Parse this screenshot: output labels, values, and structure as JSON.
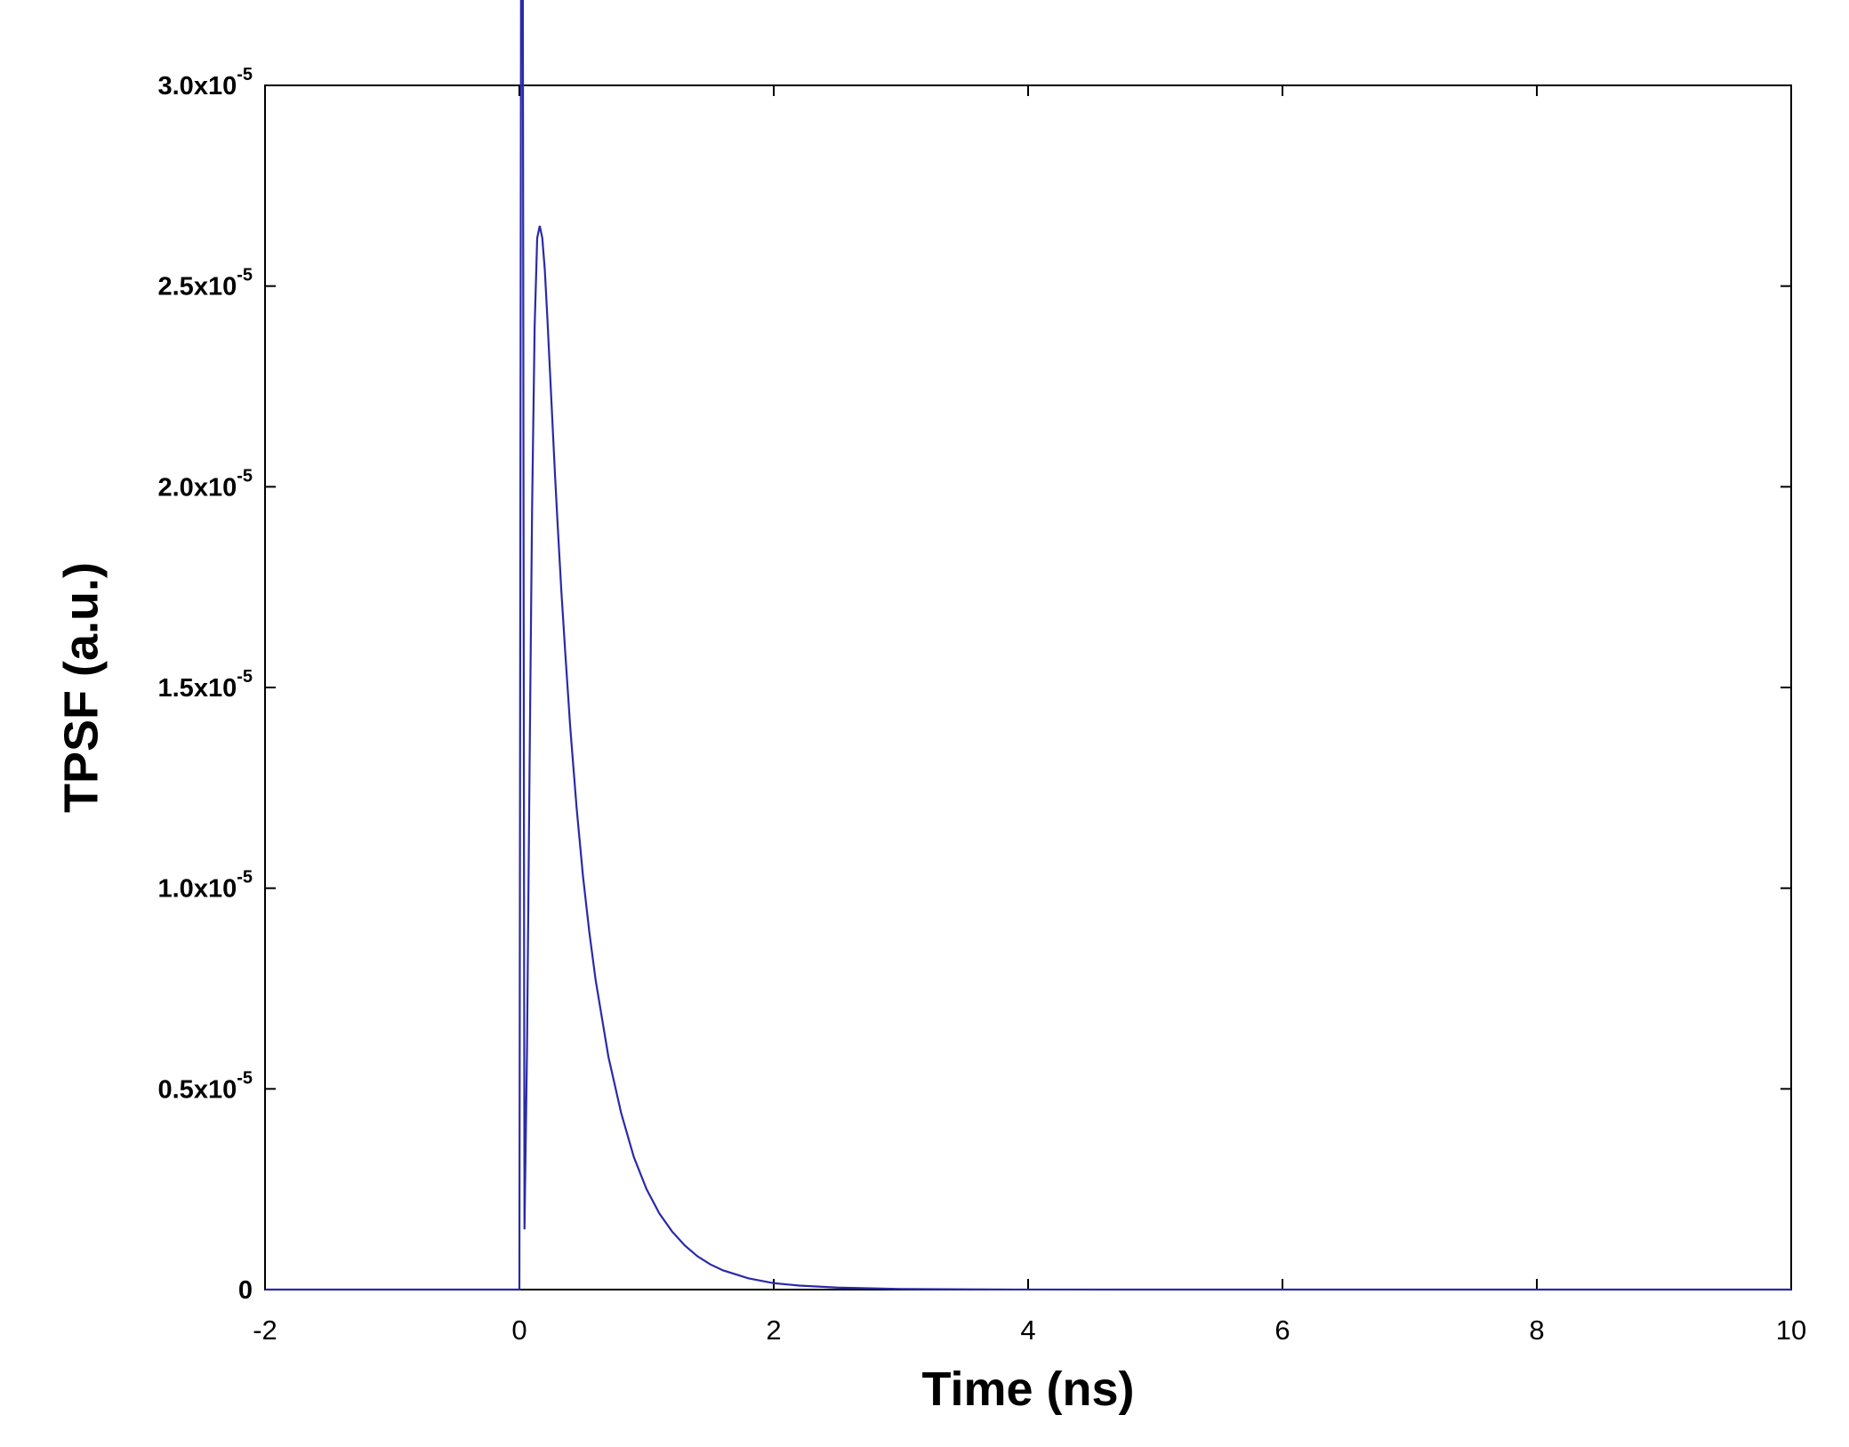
{
  "chart_data": {
    "type": "line",
    "title": "",
    "xlabel": "Time (ns)",
    "ylabel": "TPSF (a.u.)",
    "xlim": [
      -2,
      10
    ],
    "ylim": [
      0,
      3e-05
    ],
    "x_ticks": [
      {
        "value": -2,
        "label": "-2"
      },
      {
        "value": 0,
        "label": "0"
      },
      {
        "value": 2,
        "label": "2"
      },
      {
        "value": 4,
        "label": "4"
      },
      {
        "value": 6,
        "label": "6"
      },
      {
        "value": 8,
        "label": "8"
      },
      {
        "value": 10,
        "label": "10"
      }
    ],
    "y_ticks": [
      {
        "value": 0,
        "label": "0",
        "exp": ""
      },
      {
        "value": 5e-06,
        "label": "0.5x10",
        "exp": "-5"
      },
      {
        "value": 1e-05,
        "label": "1.0x10",
        "exp": "-5"
      },
      {
        "value": 1.5e-05,
        "label": "1.5x10",
        "exp": "-5"
      },
      {
        "value": 2e-05,
        "label": "2.0x10",
        "exp": "-5"
      },
      {
        "value": 2.5e-05,
        "label": "2.5x10",
        "exp": "-5"
      },
      {
        "value": 3e-05,
        "label": "3.0x10",
        "exp": "-5"
      }
    ],
    "grid": false,
    "legend": "none",
    "series": [
      {
        "color": "#2a2aa8",
        "x": [
          -2,
          0,
          0.02,
          0.04,
          0.06,
          0.08,
          0.1,
          0.12,
          0.14,
          0.16,
          0.18,
          0.2,
          0.22,
          0.24,
          0.26,
          0.28,
          0.3,
          0.33,
          0.36,
          0.4,
          0.45,
          0.5,
          0.55,
          0.6,
          0.7,
          0.8,
          0.9,
          1.0,
          1.1,
          1.2,
          1.3,
          1.4,
          1.5,
          1.6,
          1.8,
          2.0,
          2.2,
          2.5,
          3.0,
          3.5,
          4.0,
          5.0,
          6.0,
          8.0,
          10.0
        ],
        "y": [
          0,
          0,
          5e-05,
          1.5e-06,
          6e-06,
          1.3e-05,
          1.95e-05,
          2.4e-05,
          2.62e-05,
          2.65e-05,
          2.62e-05,
          2.54e-05,
          2.42e-05,
          2.29e-05,
          2.16e-05,
          2.03e-05,
          1.91e-05,
          1.74e-05,
          1.59e-05,
          1.4e-05,
          1.2e-05,
          1.03e-05,
          8.9e-06,
          7.7e-06,
          5.8e-06,
          4.4e-06,
          3.3e-06,
          2.5e-06,
          1.9e-06,
          1.45e-06,
          1.1e-06,
          8.3e-07,
          6.3e-07,
          4.8e-07,
          2.8e-07,
          1.6e-07,
          1e-07,
          5e-08,
          1.5e-08,
          5e-09,
          1e-09,
          0,
          0,
          0,
          0
        ]
      }
    ]
  }
}
